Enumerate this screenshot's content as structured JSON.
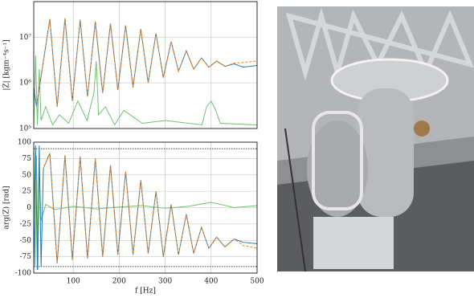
{
  "chart_data": [
    {
      "type": "line",
      "ylabel": "|Z| [kgm⁻⁴s⁻¹]",
      "log_y": true,
      "grid": true,
      "xticklabels": false,
      "xlim": [
        14,
        500
      ],
      "xticks": [
        100,
        200,
        300,
        400,
        500
      ],
      "ylim": [
        100000,
        60000000
      ],
      "yticks": [
        {
          "value": 100000,
          "label": "10⁵"
        },
        {
          "value": 1000000,
          "label": "10⁶"
        },
        {
          "value": 10000000,
          "label": "10⁷"
        }
      ],
      "series": [
        {
          "color": "#1f77b4",
          "dash": false,
          "x": [
            14,
            20,
            49,
            65,
            82,
            98,
            115,
            131,
            148,
            164,
            181,
            197,
            214,
            230,
            247,
            263,
            280,
            296,
            313,
            329,
            346,
            362,
            379,
            395,
            412,
            430,
            450,
            470,
            500
          ],
          "values": [
            800000,
            300000,
            25000000,
            300000,
            26000000,
            400000,
            24000000,
            500000,
            22000000,
            600000,
            20000000,
            700000,
            18000000,
            800000,
            15000000,
            1000000,
            12000000,
            1300000,
            8000000,
            1800000,
            5000000,
            2000000,
            3500000,
            2200000,
            3000000,
            2300000,
            2600000,
            2200000,
            2400000
          ]
        },
        {
          "color": "#ff7f0e",
          "dash": true,
          "x": [
            20,
            49,
            65,
            82,
            98,
            115,
            131,
            148,
            164,
            181,
            197,
            214,
            230,
            247,
            263,
            280,
            296,
            313,
            329,
            346,
            362,
            379,
            395,
            412,
            430,
            450,
            470,
            500
          ],
          "values": [
            300000,
            25000000,
            300000,
            26000000,
            400000,
            24000000,
            500000,
            22000000,
            600000,
            20000000,
            700000,
            18000000,
            800000,
            15000000,
            1000000,
            12000000,
            1300000,
            8000000,
            1800000,
            5000000,
            2000000,
            3500000,
            2200000,
            3000000,
            2300000,
            2700000,
            2800000,
            3000000
          ]
        },
        {
          "color": "#6fc36f",
          "dash": false,
          "x": [
            14,
            18,
            22,
            26,
            30,
            40,
            55,
            70,
            90,
            110,
            130,
            145,
            150,
            155,
            170,
            190,
            210,
            250,
            300,
            380,
            390,
            400,
            410,
            420,
            500
          ],
          "values": [
            110000,
            4000000,
            120000,
            2000000,
            150000,
            300000,
            120000,
            200000,
            130000,
            400000,
            150000,
            600000,
            3000000,
            200000,
            300000,
            120000,
            250000,
            130000,
            150000,
            120000,
            300000,
            400000,
            250000,
            130000,
            120000
          ]
        }
      ]
    },
    {
      "type": "line",
      "ylabel": "arg(Z) [rad]",
      "xlabel": "f [Hz]",
      "log_y": false,
      "grid": true,
      "xticklabels": true,
      "xlim": [
        14,
        500
      ],
      "xticks": [
        100,
        200,
        300,
        400,
        500
      ],
      "ylim": [
        -100,
        100
      ],
      "yticks": [
        -100,
        -75,
        -50,
        -25,
        0,
        25,
        50,
        75,
        100
      ],
      "reference_lines": [
        90,
        -90
      ],
      "series": [
        {
          "color": "#1f77b4",
          "dash": false,
          "x": [
            14,
            18,
            22,
            26,
            30,
            35,
            49,
            65,
            82,
            98,
            115,
            131,
            148,
            164,
            181,
            197,
            214,
            230,
            247,
            263,
            280,
            296,
            313,
            329,
            346,
            362,
            379,
            395,
            412,
            430,
            450,
            470,
            500
          ],
          "values": [
            -95,
            95,
            -95,
            95,
            -90,
            60,
            83,
            -85,
            80,
            -80,
            78,
            -78,
            75,
            -75,
            65,
            -72,
            55,
            -72,
            42,
            -70,
            25,
            -75,
            5,
            -72,
            -10,
            -70,
            -30,
            -62,
            -45,
            -60,
            -48,
            -53,
            -55
          ]
        },
        {
          "color": "#ff7f0e",
          "dash": true,
          "x": [
            35,
            49,
            65,
            82,
            98,
            115,
            131,
            148,
            164,
            181,
            197,
            214,
            230,
            247,
            263,
            280,
            296,
            313,
            329,
            346,
            362,
            379,
            395,
            412,
            430,
            450,
            470,
            500
          ],
          "values": [
            60,
            83,
            -85,
            80,
            -80,
            78,
            -78,
            75,
            -75,
            65,
            -72,
            55,
            -72,
            42,
            -70,
            25,
            -75,
            5,
            -72,
            -10,
            -70,
            -30,
            -62,
            -45,
            -60,
            -48,
            -58,
            -62
          ]
        },
        {
          "color": "#6fc36f",
          "dash": false,
          "x": [
            14,
            17,
            20,
            23,
            26,
            30,
            40,
            60,
            100,
            150,
            200,
            250,
            300,
            350,
            400,
            420,
            450,
            500
          ],
          "values": [
            90,
            -90,
            80,
            -95,
            60,
            -20,
            5,
            -3,
            2,
            -2,
            1,
            3,
            -1,
            2,
            8,
            5,
            0,
            3
          ]
        }
      ]
    }
  ]
}
